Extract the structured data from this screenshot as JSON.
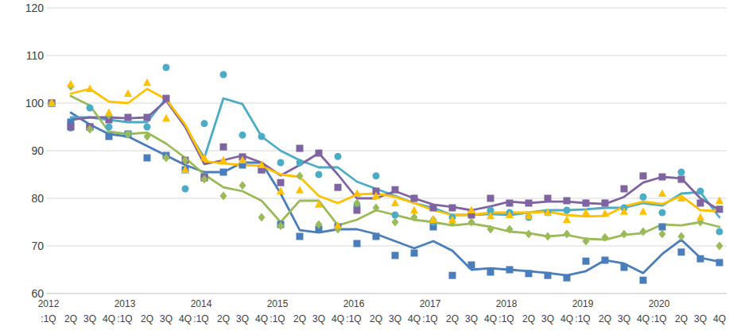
{
  "chart_data": {
    "type": "line",
    "categories": [
      "2012\n:1Q",
      "2Q",
      "3Q",
      "4Q",
      "2013\n:1Q",
      "2Q",
      "3Q",
      "4Q",
      "2014\n:1Q",
      "2Q",
      "3Q",
      "4Q",
      "2015\n:1Q",
      "2Q",
      "3Q",
      "4Q",
      "2016\n:1Q",
      "2Q",
      "3Q",
      "4Q",
      "2017\n:1Q",
      "2Q",
      "3Q",
      "4Q",
      "2018\n:1Q",
      "2Q",
      "3Q",
      "4Q",
      "2019\n:1Q",
      "2Q",
      "3Q",
      "4Q",
      "2020\n:1Q",
      "2Q",
      "3Q",
      "4Q"
    ],
    "ylim": [
      60,
      120
    ],
    "yticks": [
      60,
      70,
      80,
      90,
      100,
      110,
      120
    ],
    "grid": true,
    "series": [
      {
        "type": "line",
        "color": "#4a7ebb",
        "values": [
          null,
          98,
          95.5,
          93.5,
          93,
          91,
          89,
          87,
          85.5,
          85.5,
          87.5,
          87.5,
          81,
          73.3,
          72.8,
          73.5,
          73.5,
          72.5,
          71,
          69.5,
          71,
          69,
          65,
          65.3,
          65,
          64.7,
          64.3,
          63.8,
          64.7,
          67,
          66.3,
          64.3,
          68.3,
          71.3,
          67.5,
          66.7
        ]
      },
      {
        "type": "line",
        "color": "#4bacc6",
        "values": [
          null,
          97,
          97,
          96.5,
          96,
          96,
          101,
          95,
          88.5,
          101,
          99.8,
          93,
          90,
          88,
          86.5,
          86.5,
          83.5,
          82,
          80.5,
          79,
          78,
          76.5,
          76.5,
          76.7,
          76.5,
          77,
          77.5,
          77.5,
          77.7,
          78,
          78,
          79,
          78.5,
          81,
          81.3,
          76
        ]
      },
      {
        "type": "line",
        "color": "#8064a2",
        "values": [
          null,
          96.5,
          97,
          97,
          96.8,
          97,
          100.5,
          95,
          87.2,
          88,
          89,
          87.5,
          84.8,
          87,
          89.5,
          85,
          80,
          80,
          81.5,
          80,
          78.7,
          78.2,
          77.5,
          78.3,
          79.3,
          79,
          79.3,
          79.3,
          79,
          78.8,
          80.3,
          83.3,
          84.5,
          84.2,
          80,
          77.5
        ]
      },
      {
        "type": "line",
        "color": "#9bbb59",
        "values": [
          null,
          101.5,
          99.5,
          94,
          93.5,
          93.8,
          91.5,
          88.5,
          85,
          82.3,
          81.5,
          79.5,
          75,
          79.5,
          79.5,
          74.3,
          75.5,
          77.5,
          76.5,
          75.5,
          75,
          74.3,
          74.7,
          74,
          73,
          72.7,
          72,
          72.3,
          71.5,
          71.3,
          72.3,
          72.7,
          74.5,
          74.3,
          75,
          74
        ]
      },
      {
        "type": "line",
        "color": "#ffc000",
        "values": [
          null,
          102,
          103,
          100.3,
          100,
          103,
          100.8,
          95.5,
          87.8,
          87.3,
          87,
          86.8,
          85,
          84.5,
          80.5,
          79,
          80.8,
          81,
          80.3,
          79,
          77.5,
          76.5,
          76.5,
          77,
          77,
          77,
          77.2,
          76.5,
          76.2,
          76.3,
          78.3,
          79.3,
          78.8,
          80.5,
          77.5,
          77.3
        ]
      },
      {
        "type": "scatter",
        "marker": "square",
        "color": "#4a7ebb",
        "values": [
          100,
          96,
          95,
          93,
          93.5,
          88.5,
          89,
          86,
          84.5,
          85.5,
          87,
          86,
          74.5,
          72,
          73.5,
          74,
          70.5,
          72,
          68,
          68.5,
          74,
          63.8,
          66,
          64.5,
          65,
          64.2,
          63.8,
          63.3,
          66.8,
          67,
          65.5,
          62.8,
          74,
          68.7,
          67.3,
          66.5
        ]
      },
      {
        "type": "scatter",
        "marker": "circle",
        "color": "#4bacc6",
        "values": [
          100,
          94.8,
          99,
          95,
          93.5,
          95,
          107.5,
          82,
          95.7,
          106,
          93.3,
          93,
          87.5,
          87.5,
          85,
          88.8,
          78.5,
          84.7,
          76.5,
          80,
          75,
          76,
          76.5,
          77.5,
          77,
          76,
          77,
          77.5,
          79,
          79,
          78,
          80.3,
          77,
          85.5,
          81.5,
          73
        ]
      },
      {
        "type": "scatter",
        "marker": "square",
        "color": "#8064a2",
        "values": [
          100,
          95,
          95,
          96.5,
          97,
          97,
          101,
          88,
          84.3,
          90.8,
          88.7,
          86,
          83.3,
          90.5,
          89.5,
          82.3,
          77.5,
          81.5,
          81.8,
          80,
          78,
          78,
          76.5,
          80,
          79,
          79,
          80,
          79.5,
          79,
          79,
          82,
          84.7,
          84.5,
          84,
          79,
          77.7
        ]
      },
      {
        "type": "scatter",
        "marker": "diamond",
        "color": "#9bbb59",
        "values": [
          100,
          103.5,
          94.5,
          97.5,
          93.5,
          93,
          88.5,
          88,
          84,
          80.5,
          82.7,
          76,
          74.2,
          84.7,
          74.5,
          73.5,
          79,
          78,
          75,
          76,
          75.5,
          75,
          75,
          73.5,
          73.5,
          72.5,
          72,
          72.5,
          71,
          71.8,
          72.5,
          73,
          72.5,
          72,
          75,
          70
        ]
      },
      {
        "type": "scatter",
        "marker": "triangle",
        "color": "#ffc000",
        "values": [
          100,
          104,
          103,
          98,
          102,
          104.3,
          96.8,
          86,
          88.5,
          88,
          88,
          87,
          81.5,
          81.7,
          78.7,
          74.3,
          81,
          80.5,
          79,
          77.5,
          75.5,
          75.5,
          77.5,
          76.3,
          76.5,
          76.3,
          77,
          75.5,
          77,
          76.8,
          77.2,
          77.2,
          81,
          80,
          76,
          79.5
        ]
      }
    ]
  }
}
